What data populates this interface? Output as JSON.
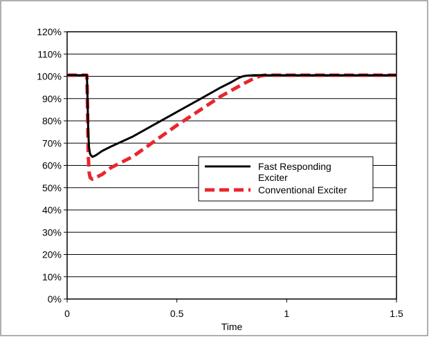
{
  "chart_data": {
    "type": "line",
    "xlabel": "Time",
    "ylabel": "",
    "xlim": [
      0,
      1.5
    ],
    "ylim": [
      0,
      120
    ],
    "x_ticks": [
      "0",
      "0.5",
      "1",
      "1.5"
    ],
    "y_ticks": [
      "0%",
      "10%",
      "20%",
      "30%",
      "40%",
      "50%",
      "60%",
      "70%",
      "80%",
      "90%",
      "100%",
      "110%",
      "120%"
    ],
    "grid": "horizontal",
    "legend_position": "right-middle",
    "series": [
      {
        "name": "Fast Responding Exciter",
        "color": "#000000",
        "style": "solid",
        "x": [
          0,
          0.09,
          0.093,
          0.096,
          0.1,
          0.105,
          0.115,
          0.13,
          0.16,
          0.2,
          0.3,
          0.4,
          0.5,
          0.6,
          0.7,
          0.75,
          0.78,
          0.8,
          0.82,
          0.85,
          1.0,
          1.5
        ],
        "y": [
          100.5,
          100.5,
          90,
          75,
          68,
          65,
          63.8,
          64.5,
          66.5,
          68.5,
          73,
          78.5,
          84,
          89.5,
          95,
          97.5,
          99.2,
          100,
          100.3,
          100.5,
          100.5,
          100.5
        ]
      },
      {
        "name": "Conventional Exciter",
        "color": "#e8262d",
        "style": "dashed",
        "x": [
          0,
          0.09,
          0.093,
          0.096,
          0.1,
          0.105,
          0.115,
          0.13,
          0.16,
          0.2,
          0.3,
          0.4,
          0.5,
          0.6,
          0.7,
          0.8,
          0.85,
          0.88,
          0.9,
          1.0,
          1.5
        ],
        "y": [
          100.5,
          100.5,
          85,
          65,
          57,
          54.5,
          53.8,
          54.5,
          56,
          59,
          64,
          71,
          78,
          84.5,
          91,
          96.5,
          99,
          100.2,
          100.5,
          100.5,
          100.5
        ]
      }
    ]
  }
}
